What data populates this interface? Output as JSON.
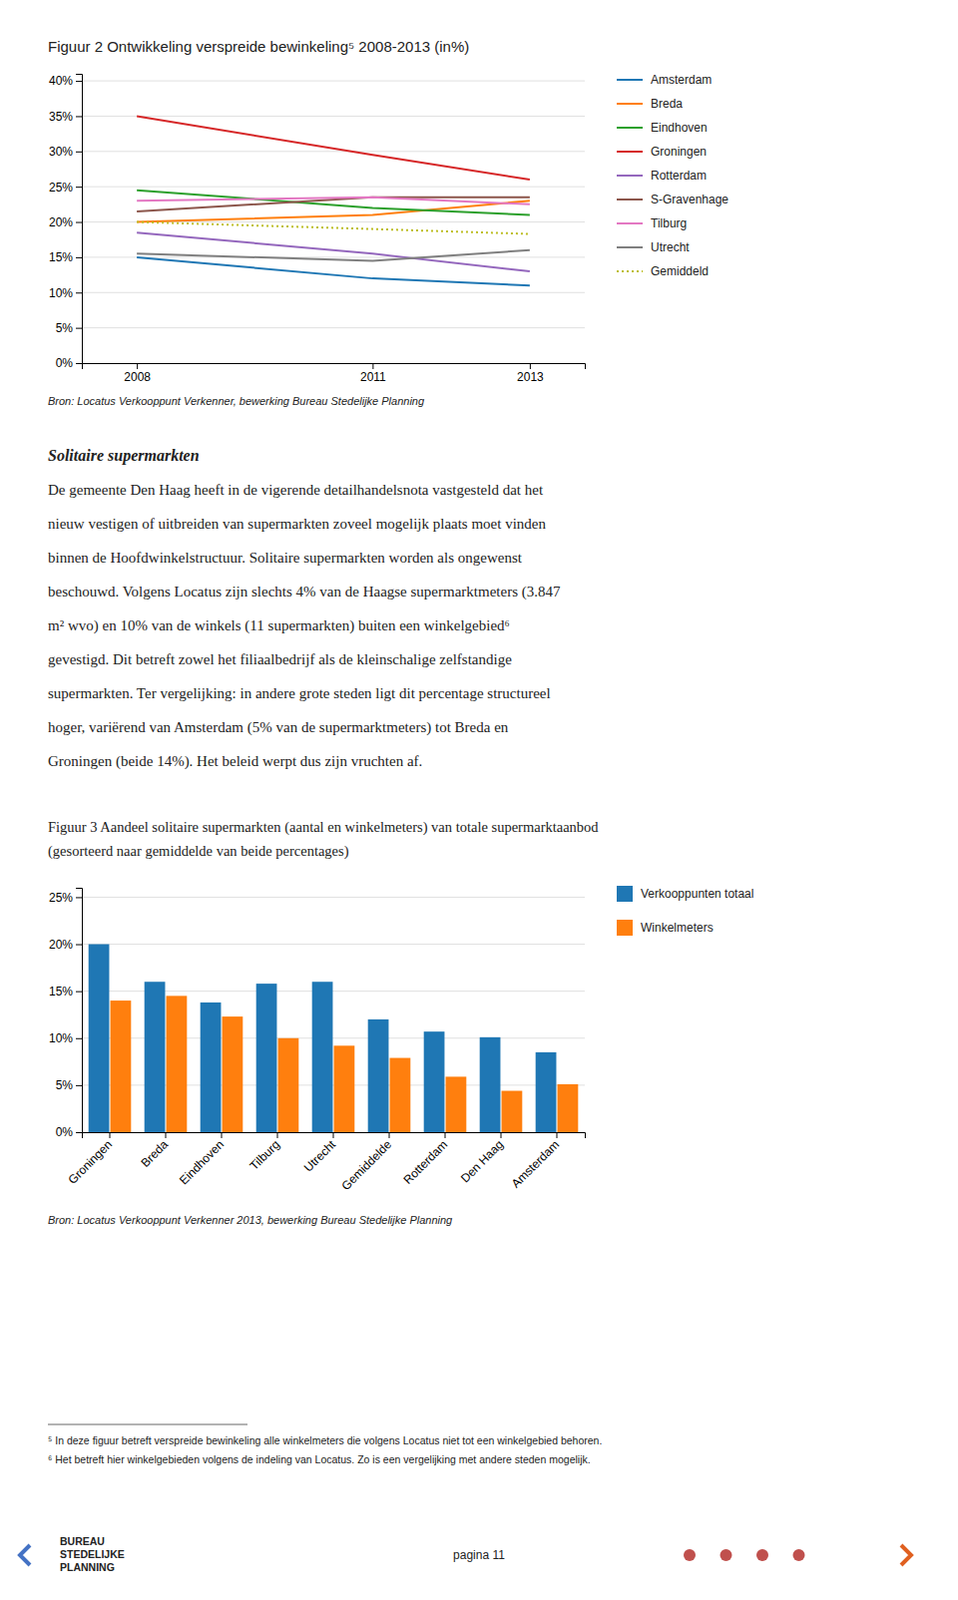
{
  "chart_data": [
    {
      "type": "line",
      "title": "Figuur 2 Ontwikkeling verspreide bewinkeling⁵ 2008-2013 (in%)",
      "x": [
        2008,
        2011,
        2013
      ],
      "series": [
        {
          "name": "Amsterdam",
          "values": [
            0.15,
            0.12,
            0.11
          ],
          "line_style": "solid"
        },
        {
          "name": "Breda",
          "values": [
            0.2,
            0.21,
            0.23
          ],
          "line_style": "solid"
        },
        {
          "name": "Eindhoven",
          "values": [
            0.245,
            0.22,
            0.21
          ],
          "line_style": "solid"
        },
        {
          "name": "Groningen",
          "values": [
            0.35,
            0.295,
            0.26
          ],
          "line_style": "solid"
        },
        {
          "name": "Rotterdam",
          "values": [
            0.185,
            0.155,
            0.13
          ],
          "line_style": "solid"
        },
        {
          "name": "S-Gravenhage",
          "values": [
            0.215,
            0.235,
            0.235
          ],
          "line_style": "solid"
        },
        {
          "name": "Tilburg",
          "values": [
            0.23,
            0.235,
            0.225
          ],
          "line_style": "solid"
        },
        {
          "name": "Utrecht",
          "values": [
            0.155,
            0.145,
            0.16
          ],
          "line_style": "solid"
        },
        {
          "name": "Gemiddeld",
          "values": [
            0.2,
            0.19,
            0.183
          ],
          "line_style": "dotted"
        }
      ],
      "xlim": [
        2007.3,
        2013.7
      ],
      "xticks": [
        2008,
        2011,
        2013
      ],
      "ylim": [
        0,
        0.41
      ],
      "yticks": [
        {
          "value": 0.0,
          "label": "0%"
        },
        {
          "value": 0.05,
          "label": "5%"
        },
        {
          "value": 0.1,
          "label": "10%"
        },
        {
          "value": 0.15,
          "label": "15%"
        },
        {
          "value": 0.2,
          "label": "20%"
        },
        {
          "value": 0.25,
          "label": "25%"
        },
        {
          "value": 0.3,
          "label": "30%"
        },
        {
          "value": 0.35,
          "label": "35%"
        },
        {
          "value": 0.4,
          "label": "40%"
        }
      ],
      "grid": true,
      "legend": "right",
      "annotations": [
        "Bron: Locatus Verkooppunt Verkenner, bewerking Bureau Stedelijke Planning"
      ]
    },
    {
      "type": "bar",
      "title": "Figuur 3 Aandeel solitaire supermarkten (aantal en winkelmeters) van totale supermarktaanbod",
      "subtitle": "(gesorteerd naar gemiddelde van beide percentages)",
      "categories": [
        "Groningen",
        "Breda",
        "Eindhoven",
        "Tilburg",
        "Utrecht",
        "Gemiddelde",
        "Rotterdam",
        "Den Haag",
        "Amsterdam"
      ],
      "series": [
        {
          "name": "Verkooppunten totaal",
          "values": [
            0.2,
            0.16,
            0.138,
            0.158,
            0.16,
            0.12,
            0.107,
            0.101,
            0.085
          ]
        },
        {
          "name": "Winkelmeters",
          "values": [
            0.14,
            0.145,
            0.123,
            0.1,
            0.092,
            0.079,
            0.059,
            0.044,
            0.051
          ]
        }
      ],
      "ylim": [
        0,
        0.26
      ],
      "yticks": [
        {
          "value": 0.0,
          "label": "0%"
        },
        {
          "value": 0.05,
          "label": "5%"
        },
        {
          "value": 0.1,
          "label": "10%"
        },
        {
          "value": 0.15,
          "label": "15%"
        },
        {
          "value": 0.2,
          "label": "20%"
        },
        {
          "value": 0.25,
          "label": "25%"
        }
      ],
      "grid": true,
      "legend": "right",
      "annotations": [
        "Bron: Locatus Verkooppunt Verkenner 2013, bewerking Bureau Stedelijke Planning"
      ]
    }
  ],
  "page": {
    "heading": "Solitaire supermarkten",
    "paragraph": [
      "De gemeente Den Haag heeft in de vigerende detailhandelsnota vastgesteld dat het",
      "nieuw vestigen of uitbreiden van supermarkten zoveel mogelijk plaats moet vinden",
      "binnen de Hoofdwinkelstructuur. Solitaire supermarkten worden als ongewenst",
      "beschouwd. Volgens Locatus zijn slechts 4% van de Haagse supermarktmeters (3.847",
      "m² wvo) en 10% van de winkels (11 supermarkten) buiten een winkelgebied⁶",
      "gevestigd. Dit betreft zowel het filiaalbedrijf als de kleinschalige zelfstandige",
      "supermarkten. Ter vergelijking: in andere grote steden ligt dit percentage structureel",
      "hoger, variërend van Amsterdam (5% van de supermarktmeters) tot Breda en",
      "Groningen (beide 14%). Het beleid werpt dus zijn vruchten af."
    ],
    "footnotes": [
      "⁵ In deze figuur betreft verspreide bewinkeling alle winkelmeters die volgens Locatus niet tot een winkelgebied behoren.",
      "⁶ Het betreft hier winkelgebieden volgens de indeling van Locatus. Zo is een vergelijking met andere steden mogelijk."
    ],
    "logo": [
      "BUREAU",
      "STEDELIJKE",
      "PLANNING"
    ],
    "page_number": "pagina 11"
  }
}
